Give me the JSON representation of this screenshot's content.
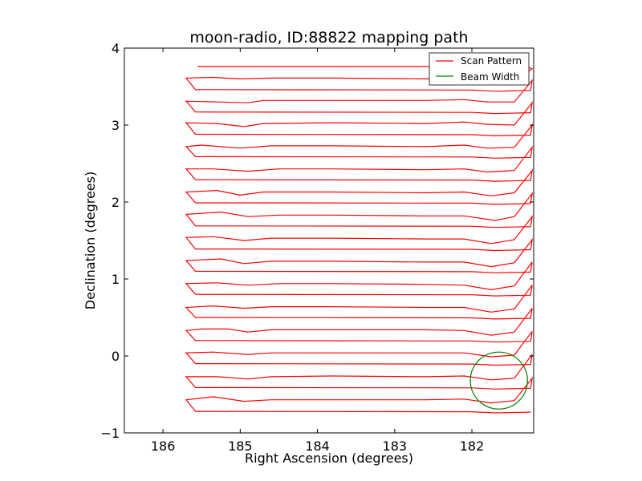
{
  "chart_data": {
    "type": "line",
    "title": "moon-radio, ID:88822 mapping path",
    "xlabel": "Right Ascension (degrees)",
    "ylabel": "Declination (degrees)",
    "xlim": [
      186.5,
      181.2
    ],
    "ylim": [
      -1,
      4
    ],
    "xticks": [
      186,
      185,
      184,
      183,
      182
    ],
    "xtick_labels": [
      "186",
      "185",
      "184",
      "183",
      "182"
    ],
    "yticks": [
      -1,
      0,
      1,
      2,
      3,
      4
    ],
    "ytick_labels": [
      "−1",
      "0",
      "1",
      "2",
      "3",
      "4"
    ],
    "grid": false,
    "legend": {
      "placement": "top-right",
      "entries": [
        {
          "label": "Scan Pattern",
          "color": "#ff0000"
        },
        {
          "label": "Beam Width",
          "color": "#008000"
        }
      ]
    },
    "series": [
      {
        "name": "Scan Pattern",
        "color": "#ff0000",
        "scan_rows": [
          {
            "y": 3.76,
            "right_x": 181.3,
            "left_x": 185.55
          },
          {
            "y": 3.61,
            "wiggle": [
              [
                185.7,
                3.61
              ],
              [
                185.35,
                3.62
              ],
              [
                185.0,
                3.6
              ],
              [
                184.6,
                3.61
              ],
              [
                183.8,
                3.61
              ],
              [
                182.6,
                3.6
              ],
              [
                182.1,
                3.61
              ],
              [
                181.75,
                3.59
              ],
              [
                181.45,
                3.58
              ]
            ]
          },
          {
            "y": 3.32,
            "wiggle": [
              [
                185.7,
                3.31
              ],
              [
                185.3,
                3.3
              ],
              [
                184.9,
                3.29
              ],
              [
                184.7,
                3.32
              ],
              [
                183.8,
                3.32
              ],
              [
                182.6,
                3.32
              ],
              [
                182.1,
                3.33
              ],
              [
                181.8,
                3.3
              ],
              [
                181.45,
                3.3
              ]
            ]
          },
          {
            "y": 3.03,
            "wiggle": [
              [
                185.7,
                3.03
              ],
              [
                185.3,
                3.02
              ],
              [
                184.95,
                2.98
              ],
              [
                184.7,
                3.02
              ],
              [
                183.8,
                3.03
              ],
              [
                182.6,
                3.02
              ],
              [
                182.1,
                3.04
              ],
              [
                181.8,
                3.01
              ],
              [
                181.45,
                3.0
              ]
            ]
          },
          {
            "y": 2.74,
            "wiggle": [
              [
                185.7,
                2.72
              ],
              [
                185.5,
                2.74
              ],
              [
                185.0,
                2.7
              ],
              [
                184.6,
                2.73
              ],
              [
                183.8,
                2.73
              ],
              [
                182.6,
                2.72
              ],
              [
                182.1,
                2.74
              ],
              [
                181.8,
                2.7
              ],
              [
                181.45,
                2.71
              ]
            ]
          },
          {
            "y": 2.44,
            "wiggle": [
              [
                185.7,
                2.43
              ],
              [
                185.35,
                2.43
              ],
              [
                184.9,
                2.4
              ],
              [
                184.5,
                2.43
              ],
              [
                183.8,
                2.43
              ],
              [
                182.6,
                2.42
              ],
              [
                182.1,
                2.43
              ],
              [
                181.8,
                2.39
              ],
              [
                181.45,
                2.41
              ]
            ]
          },
          {
            "y": 2.14,
            "wiggle": [
              [
                185.7,
                2.13
              ],
              [
                185.3,
                2.15
              ],
              [
                185.0,
                2.09
              ],
              [
                184.7,
                2.13
              ],
              [
                183.8,
                2.13
              ],
              [
                182.6,
                2.12
              ],
              [
                182.1,
                2.13
              ],
              [
                181.75,
                2.08
              ],
              [
                181.45,
                2.12
              ]
            ]
          },
          {
            "y": 1.84,
            "wiggle": [
              [
                185.7,
                1.84
              ],
              [
                185.25,
                1.87
              ],
              [
                184.9,
                1.81
              ],
              [
                184.5,
                1.83
              ],
              [
                183.8,
                1.83
              ],
              [
                182.6,
                1.82
              ],
              [
                182.1,
                1.82
              ],
              [
                181.7,
                1.76
              ],
              [
                181.45,
                1.81
              ]
            ]
          },
          {
            "y": 1.54,
            "wiggle": [
              [
                185.7,
                1.54
              ],
              [
                185.35,
                1.55
              ],
              [
                184.95,
                1.5
              ],
              [
                184.6,
                1.53
              ],
              [
                183.8,
                1.53
              ],
              [
                182.6,
                1.52
              ],
              [
                182.1,
                1.52
              ],
              [
                181.75,
                1.46
              ],
              [
                181.45,
                1.51
              ]
            ]
          },
          {
            "y": 1.25,
            "wiggle": [
              [
                185.7,
                1.24
              ],
              [
                185.25,
                1.26
              ],
              [
                184.95,
                1.2
              ],
              [
                184.6,
                1.23
              ],
              [
                183.8,
                1.23
              ],
              [
                182.6,
                1.22
              ],
              [
                182.1,
                1.22
              ],
              [
                181.75,
                1.16
              ],
              [
                181.45,
                1.21
              ]
            ]
          },
          {
            "y": 0.95,
            "wiggle": [
              [
                185.7,
                0.94
              ],
              [
                185.3,
                0.95
              ],
              [
                184.9,
                0.92
              ],
              [
                184.5,
                0.94
              ],
              [
                183.8,
                0.94
              ],
              [
                182.6,
                0.93
              ],
              [
                182.1,
                0.92
              ],
              [
                181.75,
                0.86
              ],
              [
                181.45,
                0.91
              ]
            ]
          },
          {
            "y": 0.65,
            "wiggle": [
              [
                185.7,
                0.63
              ],
              [
                185.35,
                0.65
              ],
              [
                184.95,
                0.62
              ],
              [
                184.6,
                0.64
              ],
              [
                183.8,
                0.64
              ],
              [
                182.6,
                0.63
              ],
              [
                182.1,
                0.63
              ],
              [
                181.75,
                0.57
              ],
              [
                181.45,
                0.61
              ]
            ]
          },
          {
            "y": 0.35,
            "wiggle": [
              [
                185.7,
                0.33
              ],
              [
                185.5,
                0.35
              ],
              [
                185.15,
                0.35
              ],
              [
                184.9,
                0.31
              ],
              [
                184.6,
                0.34
              ],
              [
                183.8,
                0.34
              ],
              [
                182.6,
                0.34
              ],
              [
                182.1,
                0.33
              ],
              [
                181.75,
                0.27
              ],
              [
                181.45,
                0.31
              ]
            ]
          },
          {
            "y": 0.05,
            "wiggle": [
              [
                185.7,
                0.04
              ],
              [
                185.35,
                0.05
              ],
              [
                184.9,
                0.02
              ],
              [
                184.6,
                0.04
              ],
              [
                183.8,
                0.04
              ],
              [
                182.6,
                0.04
              ],
              [
                182.1,
                0.04
              ],
              [
                181.75,
                -0.01
              ],
              [
                181.45,
                0.01
              ]
            ]
          },
          {
            "y": -0.26,
            "wiggle": [
              [
                185.7,
                -0.27
              ],
              [
                185.3,
                -0.27
              ],
              [
                184.9,
                -0.3
              ],
              [
                184.6,
                -0.27
              ],
              [
                183.8,
                -0.26
              ],
              [
                182.6,
                -0.27
              ],
              [
                182.1,
                -0.26
              ],
              [
                181.75,
                -0.31
              ],
              [
                181.45,
                -0.29
              ]
            ]
          },
          {
            "y": -0.57,
            "wiggle": [
              [
                185.7,
                -0.57
              ],
              [
                185.35,
                -0.53
              ],
              [
                184.95,
                -0.59
              ],
              [
                184.6,
                -0.57
              ],
              [
                183.8,
                -0.57
              ],
              [
                182.6,
                -0.57
              ],
              [
                182.1,
                -0.56
              ],
              [
                181.75,
                -0.61
              ],
              [
                181.45,
                -0.58
              ]
            ]
          }
        ]
      },
      {
        "name": "Beam Width",
        "color": "#008000",
        "shape": "circle",
        "center": [
          181.65,
          -0.32
        ],
        "radius_deg": 0.37
      }
    ]
  }
}
